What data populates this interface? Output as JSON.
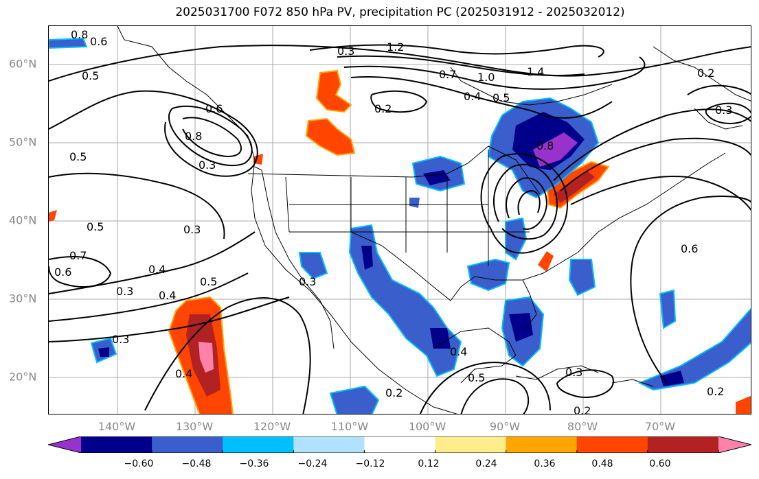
{
  "title": "2025031700 F072 850 hPa PV, precipitation PC (2025031912 - 2025032012)",
  "lat_labels": [
    "60°N",
    "50°N",
    "40°N",
    "30°N",
    "20°N"
  ],
  "lon_labels": [
    "140°W",
    "130°W",
    "120°W",
    "110°W",
    "100°W",
    "90°W",
    "80°W",
    "70°W"
  ],
  "colorbar": {
    "colors": [
      "#9932cc",
      "#00008b",
      "#3a5fcd",
      "#00bfff",
      "#b0e2ff",
      "#ffffff",
      "#ffec8b",
      "#ffa500",
      "#ff4500",
      "#b22222",
      "#ff82ab"
    ],
    "tick_labels": [
      "−0.60",
      "−0.48",
      "−0.36",
      "−0.24",
      "−0.12",
      "0.12",
      "0.24",
      "0.36",
      "0.48",
      "0.60"
    ]
  },
  "contour_labels": [
    "0.8",
    "0.6",
    "1.2",
    "1.4",
    "1.0",
    "0.7",
    "0.5",
    "0.4",
    "0.2",
    "0.3",
    "0.5",
    "0.6",
    "0.8",
    "0.5",
    "0.3",
    "0.5",
    "0.3",
    "0.4",
    "0.4",
    "0.5",
    "0.3",
    "0.7",
    "0.6",
    "0.3",
    "0.4",
    "0.3",
    "0.5",
    "0.4",
    "0.2",
    "0.3",
    "0.2",
    "0.2",
    "0.6",
    "0.2",
    "0.3",
    "0.8"
  ]
}
